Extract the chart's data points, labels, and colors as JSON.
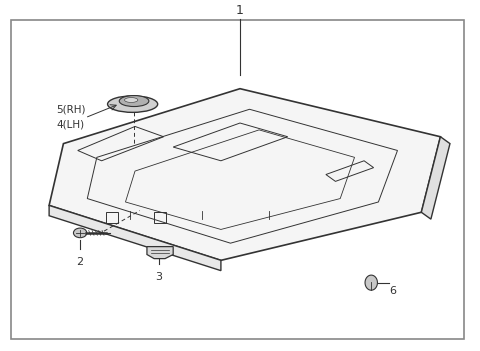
{
  "bg_color": "#ffffff",
  "border_color": "#888888",
  "line_color": "#333333",
  "figure_size": [
    4.8,
    3.51
  ],
  "dpi": 100,
  "label_1": "1",
  "label_2": "2",
  "label_3": "3",
  "label_4": "4(LH)",
  "label_5": "5(RH)",
  "label_6": "6"
}
